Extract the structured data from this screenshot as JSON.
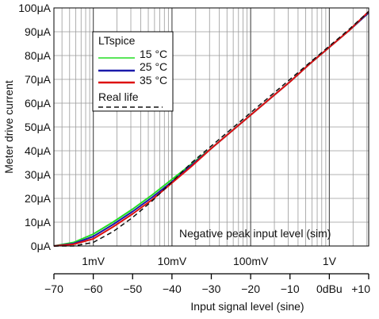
{
  "chart_data": {
    "type": "line",
    "title": "",
    "ylabel": "Meter drive current",
    "xlabel": "Input signal level (sine)",
    "annotation": "Negative peak input level (sim)",
    "x_scale": "log",
    "xlim_volts": [
      0.000316,
      3.16
    ],
    "ylim": [
      0,
      100
    ],
    "grid": true,
    "y_ticks": [
      {
        "value": 0,
        "label": "0μA"
      },
      {
        "value": 10,
        "label": "10μA"
      },
      {
        "value": 20,
        "label": "20μA"
      },
      {
        "value": 30,
        "label": "30μA"
      },
      {
        "value": 40,
        "label": "40μA"
      },
      {
        "value": 50,
        "label": "50μA"
      },
      {
        "value": 60,
        "label": "60μA"
      },
      {
        "value": 70,
        "label": "70μA"
      },
      {
        "value": 80,
        "label": "80μA"
      },
      {
        "value": 90,
        "label": "90μA"
      },
      {
        "value": 100,
        "label": "100μA"
      }
    ],
    "x_ticks_volts": [
      {
        "value": 0.001,
        "label": "1mV"
      },
      {
        "value": 0.01,
        "label": "10mV"
      },
      {
        "value": 0.1,
        "label": "100mV"
      },
      {
        "value": 1,
        "label": "1V"
      }
    ],
    "x2_ticks": [
      {
        "value": -70,
        "label": "−70"
      },
      {
        "value": -60,
        "label": "−60"
      },
      {
        "value": -50,
        "label": "−50"
      },
      {
        "value": -40,
        "label": "−40"
      },
      {
        "value": -30,
        "label": "−30"
      },
      {
        "value": -20,
        "label": "−20"
      },
      {
        "value": -10,
        "label": "−10"
      },
      {
        "value": 0,
        "label": "0dBu"
      },
      {
        "value": 10,
        "label": "+10"
      }
    ],
    "legend": {
      "title": "LTspice",
      "position": "top-left"
    },
    "series": [
      {
        "name": "15 °C",
        "color": "#22dd22",
        "dash": "solid",
        "x": [
          -70,
          -65,
          -60,
          -55,
          -50,
          -45,
          -40,
          -35,
          -30,
          -25,
          -20,
          -15,
          -10,
          -5,
          0,
          5,
          10
        ],
        "y": [
          0,
          1.5,
          5,
          10,
          15.5,
          21.5,
          28,
          34.5,
          41,
          48,
          55,
          62,
          69,
          76.5,
          83.5,
          90.5,
          98
        ]
      },
      {
        "name": "25 °C",
        "color": "#1a1aaa",
        "dash": "solid",
        "x": [
          -70,
          -65,
          -60,
          -55,
          -50,
          -45,
          -40,
          -35,
          -30,
          -25,
          -20,
          -15,
          -10,
          -5,
          0,
          5,
          10
        ],
        "y": [
          0,
          1,
          4,
          9,
          14.5,
          20.5,
          27,
          34,
          41,
          48,
          55,
          62,
          69,
          76.5,
          83.5,
          90.5,
          98
        ]
      },
      {
        "name": "35 °C",
        "color": "#dd1111",
        "dash": "solid",
        "x": [
          -70,
          -65,
          -60,
          -55,
          -50,
          -45,
          -40,
          -35,
          -30,
          -25,
          -20,
          -15,
          -10,
          -5,
          0,
          5,
          10
        ],
        "y": [
          0,
          0.7,
          3,
          8,
          13.5,
          19.5,
          26.5,
          33.5,
          41,
          48,
          55,
          62,
          69,
          76.5,
          83.5,
          90.5,
          98.5
        ]
      },
      {
        "name": "Real life",
        "color": "#111111",
        "dash": "dashed",
        "x": [
          -70,
          -65,
          -60,
          -55,
          -50,
          -45,
          -40,
          -35,
          -30,
          -25,
          -20,
          -15,
          -10,
          -5,
          0,
          5,
          10
        ],
        "y": [
          0,
          0,
          1.5,
          6,
          12,
          19,
          27,
          35,
          42,
          49,
          56,
          63,
          70,
          77,
          84,
          91,
          98.5
        ]
      }
    ]
  }
}
